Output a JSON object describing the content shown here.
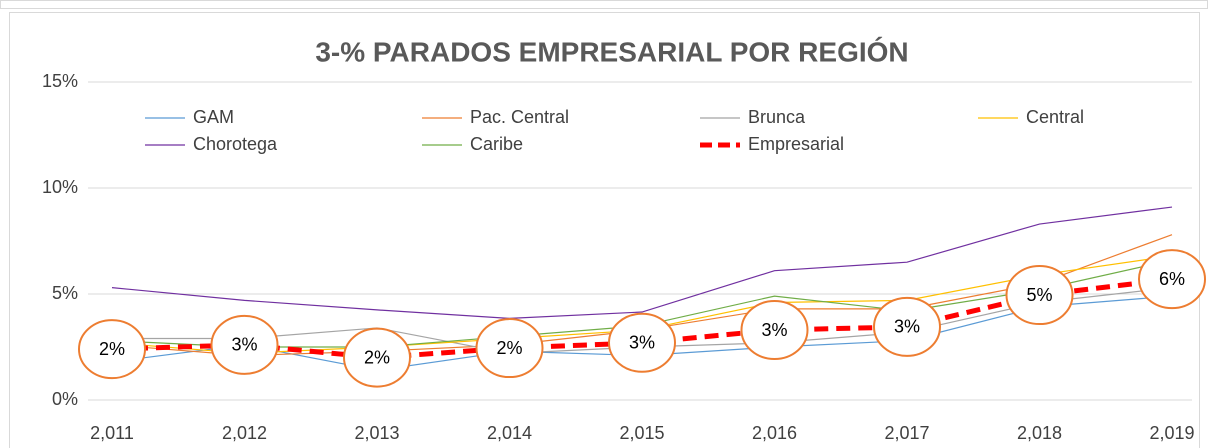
{
  "chart_data": {
    "type": "line",
    "title": "3-% PARADOS EMPRESARIAL  POR REGIÓN",
    "x": [
      2011,
      2012,
      2013,
      2014,
      2015,
      2016,
      2017,
      2018,
      2019
    ],
    "xlim": [
      2011,
      2019
    ],
    "xticks": [
      {
        "value": 2011,
        "label": "2,011"
      },
      {
        "value": 2012,
        "label": "2,012"
      },
      {
        "value": 2013,
        "label": "2,013"
      },
      {
        "value": 2014,
        "label": "2,014"
      },
      {
        "value": 2015,
        "label": "2,015"
      },
      {
        "value": 2016,
        "label": "2,016"
      },
      {
        "value": 2017,
        "label": "2,017"
      },
      {
        "value": 2018,
        "label": "2,018"
      },
      {
        "value": 2019,
        "label": "2,019"
      }
    ],
    "ylim": [
      0,
      15
    ],
    "yticks": [
      {
        "value": 0,
        "label": "0%"
      },
      {
        "value": 5,
        "label": "5%"
      },
      {
        "value": 10,
        "label": "10%"
      },
      {
        "value": 15,
        "label": "15%"
      }
    ],
    "grid": true,
    "legend": "top",
    "series": [
      {
        "name": "GAM",
        "color": "#5b9bd5",
        "values": [
          1.8,
          2.6,
          1.4,
          2.3,
          2.1,
          2.5,
          2.8,
          4.4,
          4.9
        ]
      },
      {
        "name": "Pac. Central",
        "color": "#ed7d31",
        "values": [
          2.6,
          2.1,
          2.3,
          2.6,
          3.3,
          4.3,
          4.3,
          5.5,
          7.8
        ]
      },
      {
        "name": "Brunca",
        "color": "#a5a5a5",
        "values": [
          2.9,
          2.9,
          3.4,
          2.2,
          2.5,
          2.7,
          3.2,
          4.6,
          5.3
        ]
      },
      {
        "name": "Central",
        "color": "#ffc000",
        "values": [
          2.7,
          2.2,
          2.5,
          2.9,
          3.3,
          4.6,
          4.7,
          5.9,
          6.8
        ]
      },
      {
        "name": "Chorotega",
        "color": "#7030a0",
        "values": [
          5.3,
          4.7,
          4.25,
          3.85,
          4.15,
          6.1,
          6.5,
          8.3,
          9.1
        ]
      },
      {
        "name": "Caribe",
        "color": "#70ad47",
        "values": [
          2.8,
          2.5,
          2.5,
          3.0,
          3.5,
          4.9,
          4.2,
          5.2,
          6.6
        ]
      },
      {
        "name": "Empresarial",
        "color": "#ff0000",
        "dashed": true,
        "values": [
          2.4,
          2.6,
          2.0,
          2.45,
          2.7,
          3.3,
          3.45,
          4.95,
          5.7
        ],
        "value_labels": [
          "2%",
          "3%",
          "2%",
          "2%",
          "3%",
          "3%",
          "3%",
          "5%",
          "6%"
        ]
      }
    ]
  }
}
